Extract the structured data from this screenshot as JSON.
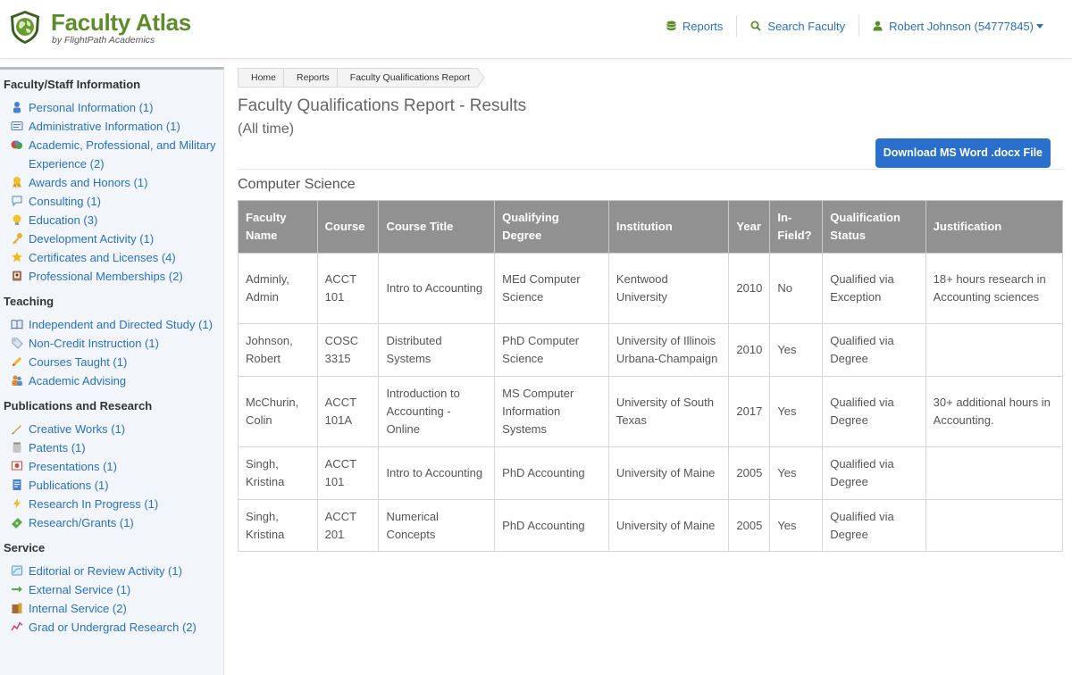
{
  "app": {
    "title": "Faculty Atlas",
    "subtitle": "by FlightPath Academics"
  },
  "topnav": {
    "reports": "Reports",
    "search": "Search Faculty",
    "user": "Robert Johnson (54777845)"
  },
  "sidebar": {
    "groups": [
      {
        "heading": "Faculty/Staff Information",
        "items": [
          {
            "label": "Personal Information (1)",
            "icon": "person-icon"
          },
          {
            "label": "Administrative Information (1)",
            "icon": "id-card-icon"
          },
          {
            "label": "Academic, Professional, and Military Experience (2)",
            "icon": "books-icon"
          },
          {
            "label": "Awards and Honors (1)",
            "icon": "award-icon"
          },
          {
            "label": "Consulting (1)",
            "icon": "speech-bubble-icon"
          },
          {
            "label": "Education (3)",
            "icon": "lightbulb-icon"
          },
          {
            "label": "Development Activity (1)",
            "icon": "key-icon"
          },
          {
            "label": "Certificates and Licenses (4)",
            "icon": "star-icon"
          },
          {
            "label": "Professional Memberships (2)",
            "icon": "badge-icon"
          }
        ]
      },
      {
        "heading": "Teaching",
        "items": [
          {
            "label": "Independent and Directed Study (1)",
            "icon": "open-book-icon"
          },
          {
            "label": "Non-Credit Instruction (1)",
            "icon": "tag-icon"
          },
          {
            "label": "Courses Taught (1)",
            "icon": "pencil-icon"
          },
          {
            "label": "Academic Advising",
            "icon": "people-icon"
          }
        ]
      },
      {
        "heading": "Publications and Research",
        "items": [
          {
            "label": "Creative Works (1)",
            "icon": "brush-icon"
          },
          {
            "label": "Patents (1)",
            "icon": "jar-icon"
          },
          {
            "label": "Presentations (1)",
            "icon": "presentation-icon"
          },
          {
            "label": "Publications (1)",
            "icon": "document-icon"
          },
          {
            "label": "Research In Progress (1)",
            "icon": "lightning-icon"
          },
          {
            "label": "Research/Grants (1)",
            "icon": "money-icon"
          }
        ]
      },
      {
        "heading": "Service",
        "items": [
          {
            "label": "Editorial or Review Activity (1)",
            "icon": "edit-icon"
          },
          {
            "label": "External Service (1)",
            "icon": "arrow-right-icon"
          },
          {
            "label": "Internal Service (2)",
            "icon": "building-icon"
          },
          {
            "label": "Grad or Undergrad Research (2)",
            "icon": "chart-line-icon"
          }
        ]
      }
    ]
  },
  "breadcrumb": [
    "Home",
    "Reports",
    "Faculty Qualifications Report"
  ],
  "main": {
    "title": "Faculty Qualifications Report - Results",
    "subtitle": "(All time)",
    "download_label": "Download MS Word .docx File",
    "section": "Computer Science"
  },
  "table": {
    "headers": [
      "Faculty Name",
      "Course",
      "Course Title",
      "Qualifying Degree",
      "Institution",
      "Year",
      "In-Field?",
      "Qualification Status",
      "Justification"
    ],
    "rows": [
      [
        "Adminly, Admin",
        "ACCT 101",
        "Intro to Accounting",
        "MEd Computer Science",
        "Kentwood University",
        "2010",
        "No",
        "Qualified via Exception",
        "18+ hours research in Accounting sciences"
      ],
      [
        "Johnson, Robert",
        "COSC 3315",
        "Distributed Systems",
        "PhD Computer Science",
        "University of Illinois Urbana-Champaign",
        "2010",
        "Yes",
        "Qualified via Degree",
        ""
      ],
      [
        "McChurin, Colin",
        "ACCT 101A",
        "Introduction to Accounting - Online",
        "MS Computer Information Systems",
        "University of South Texas",
        "2017",
        "Yes",
        "Qualified via Degree",
        "30+ additional hours in Accounting."
      ],
      [
        "Singh, Kristina",
        "ACCT 101",
        "Intro to Accounting",
        "PhD Accounting",
        "University of Maine",
        "2005",
        "Yes",
        "Qualified via Degree",
        ""
      ],
      [
        "Singh, Kristina",
        "ACCT 201",
        "Numerical Concepts",
        "PhD Accounting",
        "University of Maine",
        "2005",
        "Yes",
        "Qualified via Degree",
        ""
      ]
    ]
  },
  "colors": {
    "brand": "#5c8d2a",
    "link": "#2770c4",
    "button": "#2a6fcb",
    "table_header": "#919191"
  }
}
